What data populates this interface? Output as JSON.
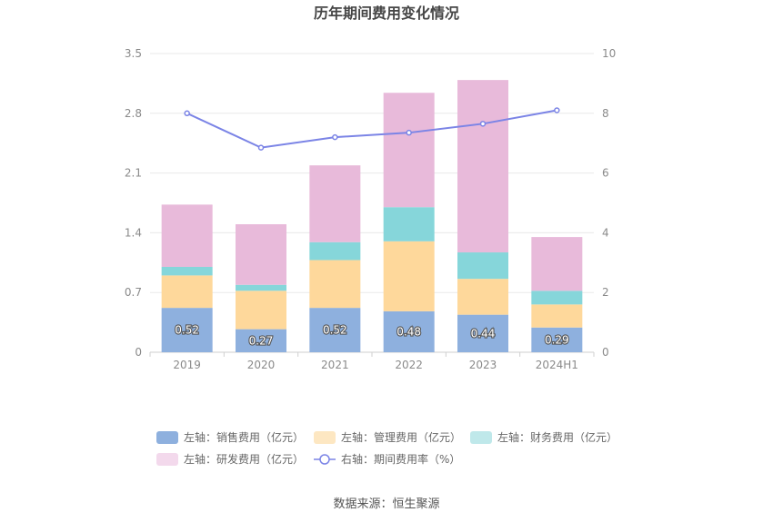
{
  "chart_data": {
    "type": "bar",
    "title": "历年期间费用变化情况",
    "categories": [
      "2019",
      "2020",
      "2021",
      "2022",
      "2023",
      "2024H1"
    ],
    "stacked": true,
    "left_axis": {
      "ylim": [
        0,
        3.5
      ],
      "ticks": [
        "0",
        "0.7",
        "1.4",
        "2.1",
        "2.8",
        "3.5"
      ]
    },
    "right_axis": {
      "ylim": [
        0,
        10
      ],
      "ticks": [
        "0",
        "2",
        "4",
        "6",
        "8",
        "10"
      ]
    },
    "series": [
      {
        "name": "左轴：销售费用（亿元）",
        "axis": "left",
        "type": "bar",
        "color": "#8eb0de",
        "values": [
          0.52,
          0.27,
          0.52,
          0.48,
          0.44,
          0.29
        ],
        "labels": [
          "0.52",
          "0.27",
          "0.52",
          "0.48",
          "0.44",
          "0.29"
        ]
      },
      {
        "name": "左轴：管理费用（亿元）",
        "axis": "left",
        "type": "bar",
        "color": "#fed89b",
        "values": [
          0.38,
          0.45,
          0.56,
          0.82,
          0.42,
          0.27
        ]
      },
      {
        "name": "左轴：财务费用（亿元）",
        "axis": "left",
        "type": "bar",
        "color": "#86d6da",
        "values": [
          0.1,
          0.07,
          0.21,
          0.4,
          0.31,
          0.16
        ]
      },
      {
        "name": "左轴：研发费用（亿元）",
        "axis": "left",
        "type": "bar",
        "color": "#e8bada",
        "values": [
          0.73,
          0.71,
          0.9,
          1.34,
          2.02,
          0.63
        ]
      },
      {
        "name": "右轴：期间费用率（%）",
        "axis": "right",
        "type": "line",
        "color": "#7b84e6",
        "values": [
          8.0,
          6.85,
          7.2,
          7.35,
          7.65,
          8.1
        ]
      }
    ],
    "legend_position": "bottom",
    "grid": true
  },
  "source": "数据来源：恒生聚源"
}
